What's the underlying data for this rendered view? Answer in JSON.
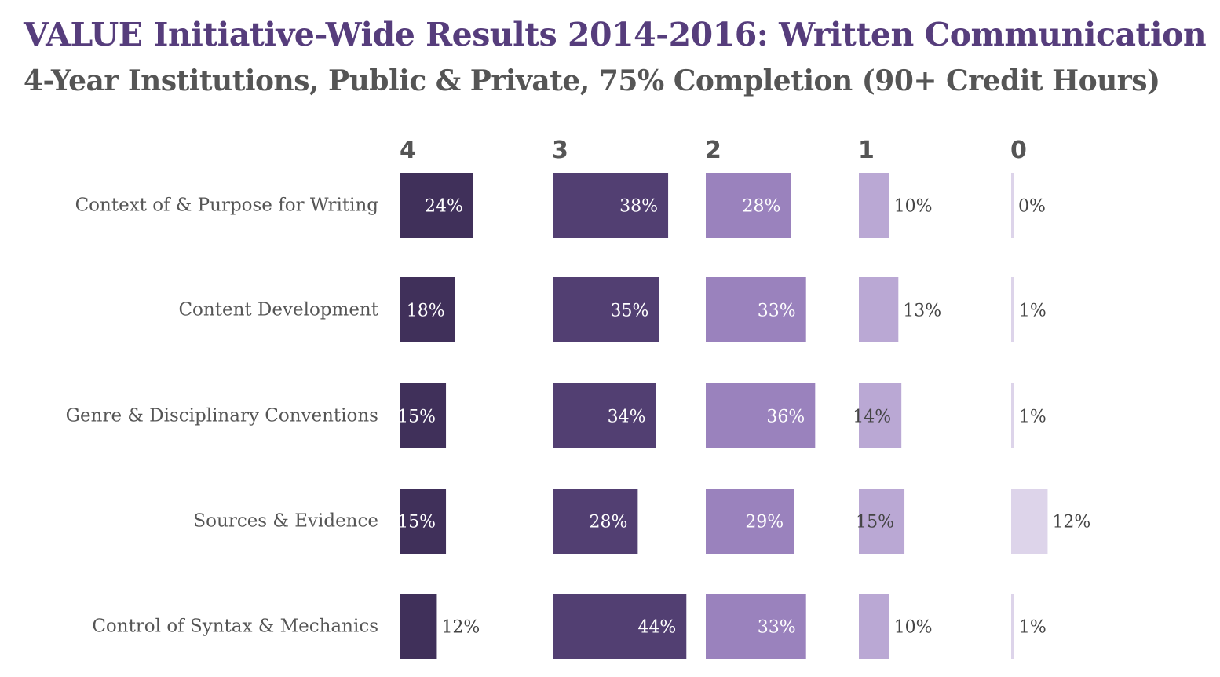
{
  "title": "VALUE Initiative-Wide Results 2014-2016: Written Communication",
  "subtitle": "4-Year Institutions, Public & Private, 75% Completion (90+ Credit Hours)",
  "colors": {
    "title": "#563d7c",
    "subtitle": "#555555",
    "levels": [
      "#40305a",
      "#523f72",
      "#9a82bd",
      "#baa8d4",
      "#ddd4ea"
    ],
    "label_light": "#ffffff",
    "label_dark": "#444444"
  },
  "chart_data": {
    "type": "bar",
    "layout": "small-multiples horizontal bar",
    "categories": [
      "Context of & Purpose for Writing",
      "Content Development",
      "Genre & Disciplinary Conventions",
      "Sources & Evidence",
      "Control of Syntax & Mechanics"
    ],
    "series": [
      {
        "name": "4",
        "values": [
          24,
          18,
          15,
          15,
          12
        ]
      },
      {
        "name": "3",
        "values": [
          38,
          35,
          34,
          28,
          44
        ]
      },
      {
        "name": "2",
        "values": [
          28,
          33,
          36,
          29,
          33
        ]
      },
      {
        "name": "1",
        "values": [
          10,
          13,
          14,
          15,
          10
        ]
      },
      {
        "name": "0",
        "values": [
          0,
          1,
          1,
          12,
          1
        ]
      }
    ],
    "value_suffix": "%",
    "xlabel": "",
    "ylabel": ""
  }
}
